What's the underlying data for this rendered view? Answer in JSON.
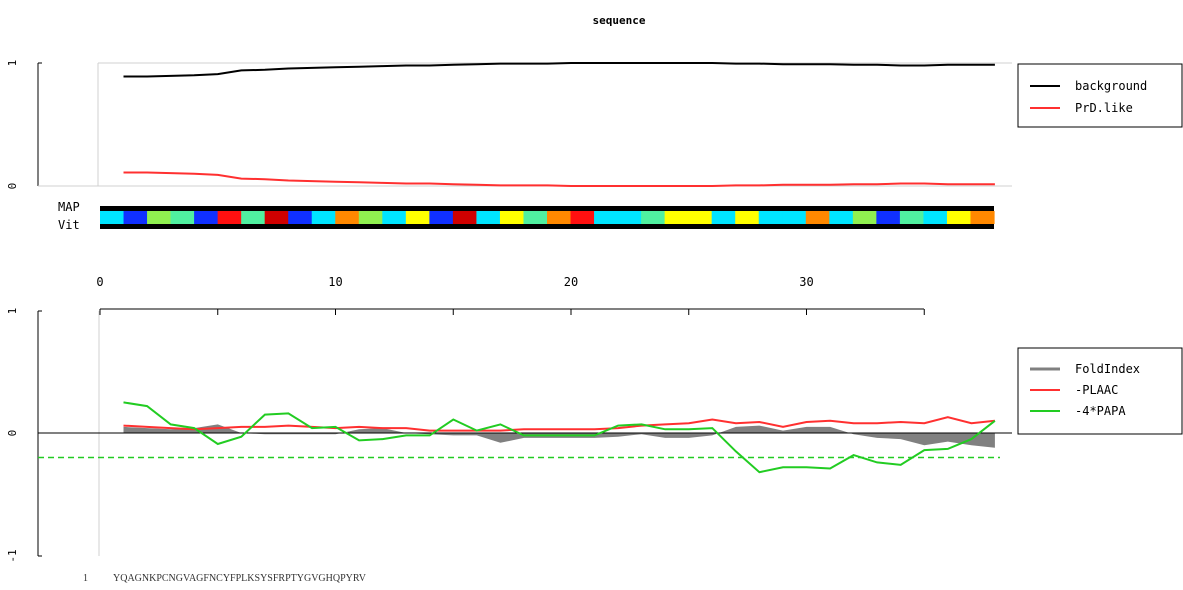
{
  "title": "sequence",
  "colors": {
    "background": "#000000",
    "prd_like": "#ff3030",
    "foldindex": "#808080",
    "plaac": "#ff3030",
    "papa": "#22cc22",
    "track": [
      "#00e5ff",
      "#1030ff",
      "#90f050",
      "#50f0a0",
      "#ff1010",
      "#d00000",
      "#ff8800",
      "#ffff00"
    ]
  },
  "chart_data": [
    {
      "type": "line",
      "panel": "top",
      "title": "sequence",
      "xlabel": "",
      "ylabel": "",
      "ylim": [
        0,
        1
      ],
      "yticks": [
        "0",
        "1"
      ],
      "grid": false,
      "legend": "right",
      "x": [
        1,
        2,
        3,
        4,
        5,
        6,
        7,
        8,
        9,
        10,
        11,
        12,
        13,
        14,
        15,
        16,
        17,
        18,
        19,
        20,
        21,
        22,
        23,
        24,
        25,
        26,
        27,
        28,
        29,
        30,
        31,
        32,
        33,
        34,
        35,
        36,
        37,
        38
      ],
      "series": [
        {
          "name": "background",
          "color": "#000000",
          "values": [
            0.89,
            0.89,
            0.895,
            0.9,
            0.91,
            0.94,
            0.945,
            0.955,
            0.96,
            0.965,
            0.97,
            0.975,
            0.98,
            0.98,
            0.985,
            0.99,
            0.995,
            0.995,
            0.995,
            1.0,
            1.0,
            1.0,
            1.0,
            1.0,
            1.0,
            1.0,
            0.995,
            0.995,
            0.99,
            0.99,
            0.99,
            0.985,
            0.985,
            0.98,
            0.98,
            0.985,
            0.985,
            0.985
          ]
        },
        {
          "name": "PrD.like",
          "color": "#ff3030",
          "values": [
            0.11,
            0.11,
            0.105,
            0.1,
            0.09,
            0.06,
            0.055,
            0.045,
            0.04,
            0.035,
            0.03,
            0.025,
            0.02,
            0.02,
            0.015,
            0.01,
            0.005,
            0.005,
            0.005,
            0.0,
            0.0,
            0.0,
            0.0,
            0.0,
            0.0,
            0.0,
            0.005,
            0.005,
            0.01,
            0.01,
            0.01,
            0.015,
            0.015,
            0.02,
            0.02,
            0.015,
            0.015,
            0.015
          ]
        }
      ]
    },
    {
      "type": "heatmap",
      "panel": "track",
      "labels": [
        "MAP",
        "Vit"
      ],
      "cells": [
        0,
        1,
        2,
        3,
        1,
        4,
        3,
        5,
        1,
        0,
        6,
        2,
        0,
        7,
        1,
        5,
        0,
        7,
        3,
        6,
        4,
        0,
        0,
        3,
        7,
        7,
        0,
        7,
        0,
        0,
        6,
        0,
        2,
        1,
        3,
        0,
        7,
        6
      ]
    },
    {
      "type": "axis",
      "panel": "x-axis",
      "xlim": [
        0,
        35
      ],
      "tick_labels": [
        "0",
        "10",
        "20",
        "30"
      ]
    },
    {
      "type": "line",
      "panel": "bottom",
      "xlabel": "",
      "ylabel": "",
      "ylim": [
        -1,
        1
      ],
      "yticks": [
        "-1",
        "0",
        "1"
      ],
      "grid": false,
      "legend": "right",
      "x": [
        1,
        2,
        3,
        4,
        5,
        6,
        7,
        8,
        9,
        10,
        11,
        12,
        13,
        14,
        15,
        16,
        17,
        18,
        19,
        20,
        21,
        22,
        23,
        24,
        25,
        26,
        27,
        28,
        29,
        30,
        31,
        32,
        33,
        34,
        35,
        36,
        37,
        38
      ],
      "threshold": {
        "value": -0.2,
        "color": "#22cc22",
        "style": "dashed"
      },
      "series": [
        {
          "name": "FoldIndex",
          "color": "#808080",
          "style": "area",
          "values": [
            0.05,
            0.04,
            0.03,
            0.04,
            0.07,
            0.0,
            -0.01,
            -0.01,
            -0.01,
            -0.01,
            0.03,
            0.04,
            0.0,
            -0.01,
            -0.02,
            -0.02,
            -0.08,
            -0.04,
            -0.04,
            -0.04,
            -0.04,
            -0.03,
            -0.01,
            -0.04,
            -0.04,
            -0.02,
            0.05,
            0.06,
            0.02,
            0.05,
            0.05,
            -0.01,
            -0.04,
            -0.05,
            -0.1,
            -0.07,
            -0.1,
            -0.12
          ]
        },
        {
          "name": "-PLAAC",
          "color": "#ff3030",
          "values": [
            0.06,
            0.05,
            0.04,
            0.03,
            0.04,
            0.05,
            0.05,
            0.06,
            0.05,
            0.04,
            0.05,
            0.04,
            0.04,
            0.02,
            0.02,
            0.02,
            0.02,
            0.03,
            0.03,
            0.03,
            0.03,
            0.04,
            0.06,
            0.07,
            0.08,
            0.11,
            0.08,
            0.09,
            0.05,
            0.09,
            0.1,
            0.08,
            0.08,
            0.09,
            0.08,
            0.13,
            0.08,
            0.1
          ]
        },
        {
          "name": "-4*PAPA",
          "color": "#22cc22",
          "values": [
            0.25,
            0.22,
            0.07,
            0.04,
            -0.09,
            -0.03,
            0.15,
            0.16,
            0.04,
            0.05,
            -0.06,
            -0.05,
            -0.02,
            -0.02,
            0.11,
            0.02,
            0.07,
            -0.02,
            -0.02,
            -0.02,
            -0.02,
            0.06,
            0.07,
            0.03,
            0.03,
            0.04,
            -0.15,
            -0.32,
            -0.28,
            -0.28,
            -0.29,
            -0.18,
            -0.24,
            -0.26,
            -0.14,
            -0.13,
            -0.05,
            0.1
          ]
        }
      ]
    }
  ],
  "sequence_label": {
    "start": "1",
    "residues": "YQAGNKPCNGVAGFNCYFPLKSYSFRPTYGVGHQPYRV"
  }
}
